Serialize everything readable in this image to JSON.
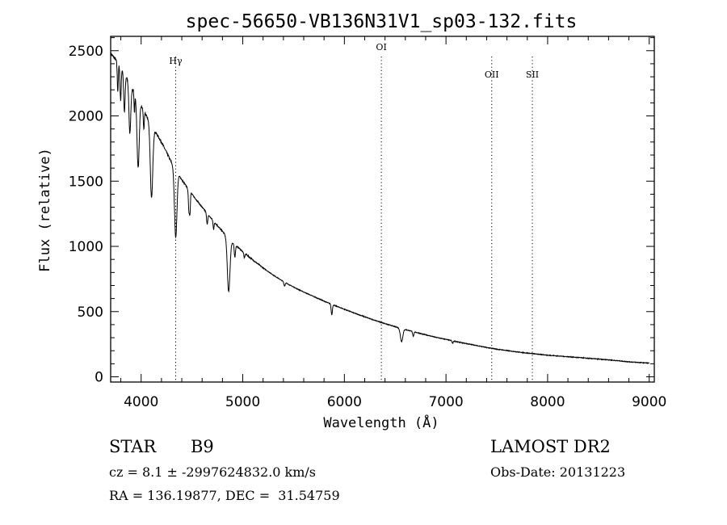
{
  "chart_data": {
    "type": "line",
    "title": "spec-56650-VB136N31V1_sp03-132.fits",
    "xlabel": "Wavelength (Å)",
    "ylabel": "Flux (relative)",
    "xlim": [
      3700,
      9050
    ],
    "ylim": [
      -40,
      2610
    ],
    "xticks": [
      4000,
      5000,
      6000,
      7000,
      8000,
      9000
    ],
    "yticks": [
      0,
      500,
      1000,
      1500,
      2000,
      2500
    ],
    "grid": false,
    "series": [
      {
        "continuum": [
          [
            3700,
            2480
          ],
          [
            3800,
            2380
          ],
          [
            3900,
            2230
          ],
          [
            4000,
            2080
          ],
          [
            4100,
            1930
          ],
          [
            4200,
            1800
          ],
          [
            4300,
            1640
          ],
          [
            4400,
            1510
          ],
          [
            4500,
            1400
          ],
          [
            4600,
            1300
          ],
          [
            4700,
            1205
          ],
          [
            4800,
            1115
          ],
          [
            4900,
            1030
          ],
          [
            5000,
            960
          ],
          [
            5100,
            895
          ],
          [
            5200,
            835
          ],
          [
            5300,
            780
          ],
          [
            5400,
            730
          ],
          [
            5500,
            688
          ],
          [
            5600,
            650
          ],
          [
            5700,
            615
          ],
          [
            5800,
            580
          ],
          [
            5900,
            548
          ],
          [
            6000,
            518
          ],
          [
            6100,
            488
          ],
          [
            6200,
            460
          ],
          [
            6300,
            433
          ],
          [
            6400,
            408
          ],
          [
            6500,
            384
          ],
          [
            6600,
            362
          ],
          [
            6700,
            342
          ],
          [
            6800,
            322
          ],
          [
            6900,
            303
          ],
          [
            7000,
            287
          ],
          [
            7100,
            270
          ],
          [
            7200,
            255
          ],
          [
            7300,
            240
          ],
          [
            7400,
            225
          ],
          [
            7500,
            212
          ],
          [
            7600,
            201
          ],
          [
            7700,
            191
          ],
          [
            7800,
            182
          ],
          [
            7900,
            174
          ],
          [
            8000,
            166
          ],
          [
            8200,
            154
          ],
          [
            8400,
            142
          ],
          [
            8600,
            130
          ],
          [
            8800,
            115
          ],
          [
            9000,
            105
          ]
        ],
        "absorption_lines": [
          {
            "x": 3770,
            "depth": 220,
            "width": 5
          },
          {
            "x": 3798,
            "depth": 260,
            "width": 6
          },
          {
            "x": 3835,
            "depth": 300,
            "width": 7
          },
          {
            "x": 3889,
            "depth": 380,
            "width": 9
          },
          {
            "x": 3934,
            "depth": 150,
            "width": 4
          },
          {
            "x": 3970,
            "depth": 520,
            "width": 11
          },
          {
            "x": 4026,
            "depth": 140,
            "width": 5
          },
          {
            "x": 4102,
            "depth": 560,
            "width": 12
          },
          {
            "x": 4340,
            "depth": 520,
            "width": 12
          },
          {
            "x": 4471,
            "depth": 170,
            "width": 6
          },
          {
            "x": 4481,
            "depth": 130,
            "width": 4
          },
          {
            "x": 4650,
            "depth": 80,
            "width": 6
          },
          {
            "x": 4713,
            "depth": 60,
            "width": 5
          },
          {
            "x": 4861,
            "depth": 410,
            "width": 13
          },
          {
            "x": 4922,
            "depth": 100,
            "width": 6
          },
          {
            "x": 5016,
            "depth": 40,
            "width": 5
          },
          {
            "x": 5411,
            "depth": 30,
            "width": 6
          },
          {
            "x": 5876,
            "depth": 80,
            "width": 6
          },
          {
            "x": 6563,
            "depth": 100,
            "width": 12
          },
          {
            "x": 6678,
            "depth": 35,
            "width": 6
          },
          {
            "x": 7065,
            "depth": 20,
            "width": 5
          }
        ]
      }
    ],
    "line_markers": [
      {
        "label": "Hγ",
        "x": 4340
      },
      {
        "label": "OI",
        "x": 6364
      },
      {
        "label": "OII",
        "x": 7450
      },
      {
        "label": "SII",
        "x": 7850
      }
    ]
  },
  "info": {
    "class": "STAR",
    "subclass": "B9",
    "survey": "LAMOST DR2",
    "cz": "cz = 8.1 ± -2997624832.0 km/s",
    "obs_date": "Obs-Date: 20131223",
    "radec": "RA = 136.19877, DEC =  31.54759"
  }
}
